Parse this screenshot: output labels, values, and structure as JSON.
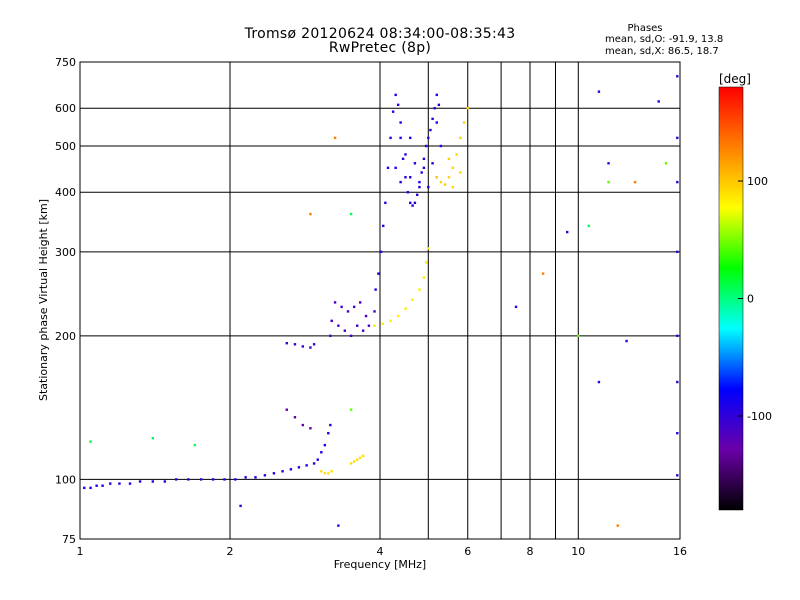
{
  "header": {
    "title_line1": "Tromsø 20120624 08:34:00-08:35:43",
    "title_line2": "RwPretec (8p)",
    "stats_title": "Phases",
    "stats_o": "mean, sd,O: -91.9, 13.8",
    "stats_x": "mean, sd,X:  86.5, 18.7"
  },
  "chart_data": {
    "type": "scatter",
    "title": "Tromsø 20120624 08:34:00-08:35:43",
    "subtitle": "RwPretec (8p)",
    "xlabel": "Frequency [MHz]",
    "ylabel": "Stationary phase Virtual Height [km]",
    "xscale": "log",
    "yscale": "log",
    "xlim": [
      1,
      16
    ],
    "ylim": [
      75,
      750
    ],
    "xticks": [
      1,
      2,
      4,
      6,
      8,
      10,
      16
    ],
    "xtick_labels": [
      "1",
      "2",
      "4",
      "6",
      "8",
      "10",
      "16"
    ],
    "x_minor_gridlines": [
      5,
      7,
      9
    ],
    "yticks": [
      75,
      100,
      200,
      300,
      400,
      500,
      600,
      750
    ],
    "ytick_labels": [
      "75",
      "100",
      "200",
      "300",
      "400",
      "500",
      "600",
      "750"
    ],
    "grid": true,
    "colorbar": {
      "label": "[deg]",
      "range": [
        -180,
        180
      ],
      "ticks": [
        -100,
        0,
        100
      ],
      "tick_labels": [
        "-100",
        "0",
        "100"
      ],
      "colormap": "rainbow",
      "stops": [
        "#000000",
        "#6a00a8",
        "#0000ff",
        "#00ffff",
        "#00ff00",
        "#ffff00",
        "#ff8000",
        "#ff0000"
      ]
    },
    "series": [
      {
        "phase": -92,
        "points": [
          [
            1.02,
            96
          ],
          [
            1.05,
            96
          ],
          [
            1.08,
            97
          ],
          [
            1.11,
            97
          ],
          [
            1.15,
            98
          ],
          [
            1.2,
            98
          ],
          [
            1.26,
            98
          ],
          [
            1.32,
            99
          ],
          [
            1.4,
            99
          ],
          [
            1.48,
            99
          ],
          [
            1.56,
            100
          ],
          [
            1.65,
            100
          ],
          [
            1.75,
            100
          ],
          [
            1.85,
            100
          ],
          [
            1.95,
            100
          ],
          [
            2.05,
            100
          ],
          [
            2.15,
            101
          ],
          [
            2.25,
            101
          ],
          [
            2.35,
            102
          ],
          [
            2.45,
            103
          ],
          [
            2.55,
            104
          ],
          [
            2.65,
            105
          ],
          [
            2.75,
            106
          ],
          [
            2.85,
            107
          ],
          [
            2.95,
            108
          ],
          [
            3.0,
            110
          ],
          [
            3.05,
            114
          ],
          [
            3.1,
            118
          ],
          [
            3.15,
            125
          ],
          [
            3.18,
            130
          ]
        ]
      },
      {
        "phase": -105,
        "points": [
          [
            2.6,
            193
          ],
          [
            2.7,
            192
          ],
          [
            2.8,
            190
          ],
          [
            2.9,
            189
          ],
          [
            2.95,
            192
          ]
        ]
      },
      {
        "phase": -110,
        "points": [
          [
            3.18,
            200
          ],
          [
            3.2,
            215
          ],
          [
            3.25,
            235
          ],
          [
            3.3,
            210
          ],
          [
            3.35,
            230
          ],
          [
            3.4,
            205
          ],
          [
            3.45,
            225
          ],
          [
            3.5,
            200
          ],
          [
            3.55,
            230
          ],
          [
            3.6,
            210
          ],
          [
            3.65,
            235
          ],
          [
            3.7,
            205
          ],
          [
            3.75,
            220
          ],
          [
            3.8,
            210
          ],
          [
            3.9,
            225
          ]
        ]
      },
      {
        "phase": -95,
        "points": [
          [
            3.92,
            250
          ],
          [
            3.97,
            270
          ],
          [
            4.02,
            300
          ],
          [
            4.06,
            340
          ],
          [
            4.1,
            380
          ],
          [
            4.15,
            450
          ],
          [
            4.2,
            520
          ],
          [
            4.25,
            590
          ],
          [
            4.3,
            640
          ],
          [
            4.35,
            610
          ],
          [
            4.4,
            520
          ],
          [
            4.45,
            470
          ],
          [
            4.5,
            430
          ],
          [
            4.55,
            400
          ],
          [
            4.6,
            380
          ],
          [
            4.65,
            375
          ],
          [
            4.7,
            380
          ],
          [
            4.75,
            395
          ],
          [
            4.8,
            410
          ],
          [
            4.85,
            440
          ],
          [
            4.9,
            470
          ],
          [
            4.95,
            500
          ],
          [
            5.0,
            520
          ],
          [
            5.05,
            540
          ],
          [
            5.1,
            570
          ],
          [
            5.15,
            600
          ],
          [
            5.2,
            640
          ],
          [
            5.25,
            610
          ]
        ]
      },
      {
        "phase": -90,
        "points": [
          [
            4.3,
            450
          ],
          [
            4.4,
            420
          ],
          [
            4.5,
            480
          ],
          [
            4.6,
            430
          ],
          [
            4.7,
            460
          ],
          [
            4.8,
            420
          ],
          [
            4.9,
            450
          ],
          [
            5.0,
            410
          ],
          [
            5.1,
            460
          ],
          [
            5.2,
            430
          ],
          [
            5.3,
            500
          ],
          [
            4.4,
            560
          ],
          [
            4.6,
            520
          ],
          [
            5.2,
            560
          ]
        ]
      },
      {
        "phase": 85,
        "points": [
          [
            3.9,
            210
          ],
          [
            4.05,
            212
          ],
          [
            4.2,
            215
          ],
          [
            4.35,
            220
          ],
          [
            4.5,
            228
          ],
          [
            4.65,
            238
          ],
          [
            4.8,
            250
          ],
          [
            4.9,
            265
          ],
          [
            4.95,
            285
          ],
          [
            5.0,
            305
          ]
        ]
      },
      {
        "phase": 95,
        "points": [
          [
            5.2,
            430
          ],
          [
            5.3,
            420
          ],
          [
            5.4,
            415
          ],
          [
            5.5,
            430
          ],
          [
            5.6,
            450
          ],
          [
            5.7,
            480
          ],
          [
            5.8,
            520
          ],
          [
            5.9,
            560
          ],
          [
            6.0,
            600
          ],
          [
            5.5,
            470
          ],
          [
            5.6,
            410
          ],
          [
            5.8,
            440
          ]
        ]
      },
      {
        "phase": 90,
        "points": [
          [
            3.05,
            104
          ],
          [
            3.1,
            103
          ],
          [
            3.15,
            103
          ],
          [
            3.2,
            104
          ],
          [
            3.5,
            108
          ],
          [
            3.55,
            109
          ],
          [
            3.6,
            110
          ],
          [
            3.65,
            111
          ],
          [
            3.7,
            112
          ]
        ]
      },
      {
        "phase": -130,
        "points": [
          [
            2.6,
            140
          ],
          [
            2.7,
            135
          ],
          [
            2.8,
            130
          ],
          [
            2.9,
            128
          ]
        ]
      },
      {
        "phase": 10,
        "points": [
          [
            1.05,
            120
          ],
          [
            1.4,
            122
          ],
          [
            1.7,
            118
          ],
          [
            3.5,
            360
          ],
          [
            10.5,
            340
          ]
        ]
      },
      {
        "phase": 130,
        "points": [
          [
            3.25,
            520
          ],
          [
            2.9,
            360
          ],
          [
            8.5,
            270
          ],
          [
            13,
            420
          ],
          [
            12,
            80
          ]
        ]
      },
      {
        "phase": -100,
        "points": [
          [
            11,
            650
          ],
          [
            11.5,
            460
          ],
          [
            14.5,
            620
          ],
          [
            15.8,
            700
          ],
          [
            15.8,
            520
          ],
          [
            15.8,
            420
          ],
          [
            15.8,
            300
          ],
          [
            15.8,
            200
          ],
          [
            15.8,
            160
          ],
          [
            15.8,
            125
          ],
          [
            15.8,
            102
          ],
          [
            12.5,
            195
          ],
          [
            7.5,
            230
          ],
          [
            9.5,
            330
          ],
          [
            11,
            160
          ],
          [
            3.3,
            80
          ],
          [
            2.1,
            88
          ]
        ]
      },
      {
        "phase": 45,
        "points": [
          [
            10,
            200
          ],
          [
            11.5,
            420
          ],
          [
            15,
            460
          ],
          [
            3.5,
            140
          ]
        ]
      }
    ]
  }
}
